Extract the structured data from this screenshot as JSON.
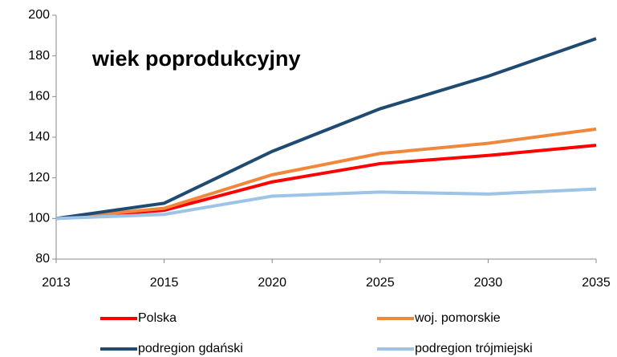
{
  "chart_data": {
    "type": "line",
    "annotation": "wiek poprodukcyjny",
    "categories": [
      "2013",
      "2015",
      "2020",
      "2025",
      "2030",
      "2035"
    ],
    "series": [
      {
        "name": "Polska",
        "color": "#ff0000",
        "values": [
          100,
          104,
          118,
          127,
          131,
          136
        ]
      },
      {
        "name": "woj. pomorskie",
        "color": "#f0873a",
        "values": [
          100,
          105,
          121.5,
          132,
          137,
          144
        ]
      },
      {
        "name": "podregion gdański",
        "color": "#1f4a72",
        "values": [
          100,
          107.5,
          133,
          154,
          170,
          188.5
        ]
      },
      {
        "name": "podregion trójmiejski",
        "color": "#9dc3e6",
        "values": [
          100,
          102,
          111,
          113,
          112,
          114.5
        ]
      }
    ],
    "ylim": [
      80,
      200
    ],
    "yticks": [
      80,
      100,
      120,
      140,
      160,
      180,
      200
    ],
    "grid": false
  }
}
